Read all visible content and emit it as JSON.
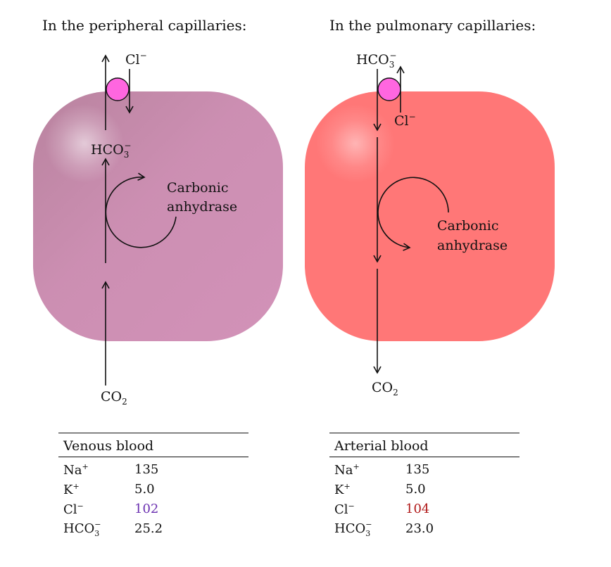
{
  "left": {
    "heading": "In the peripheral capillaries:",
    "labels": {
      "cl": "Cl",
      "hco3": "HCO",
      "co2": "CO",
      "enzyme_line1": "Carbonic",
      "enzyme_line2": "anhydrase"
    },
    "cell_color": "#d292b8",
    "table": {
      "title": "Venous blood",
      "rows": [
        {
          "ion": "Na",
          "value": "135"
        },
        {
          "ion": "K",
          "value": "5.0"
        },
        {
          "ion": "Cl",
          "value": "102"
        },
        {
          "ion": "HCO",
          "value": "25.2"
        }
      ],
      "highlight_color": "#6a2fb0"
    }
  },
  "right": {
    "heading": "In the pulmonary capillaries:",
    "labels": {
      "cl": "Cl",
      "hco3": "HCO",
      "co2": "CO",
      "enzyme_line1": "Carbonic",
      "enzyme_line2": "anhydrase"
    },
    "cell_color": "#ff7777",
    "table": {
      "title": "Arterial blood",
      "rows": [
        {
          "ion": "Na",
          "value": "135"
        },
        {
          "ion": "K",
          "value": "5.0"
        },
        {
          "ion": "Cl",
          "value": "104"
        },
        {
          "ion": "HCO",
          "value": "23.0"
        }
      ],
      "highlight_color": "#b01818"
    }
  },
  "exchanger_color": "#ff66e0"
}
